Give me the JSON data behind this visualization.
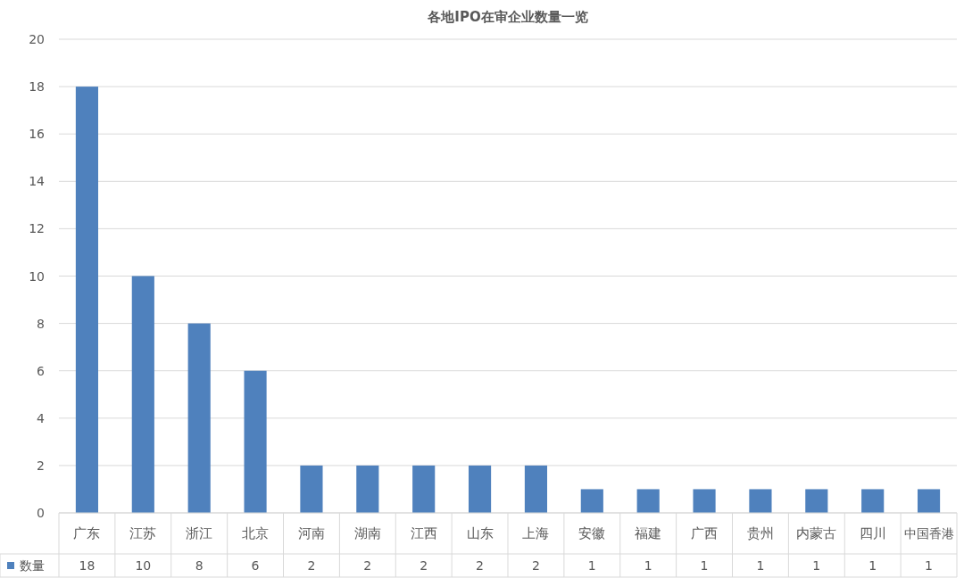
{
  "chart_data": {
    "type": "bar",
    "title": "各地IPO在审企业数量一览",
    "categories": [
      "广东",
      "江苏",
      "浙江",
      "北京",
      "河南",
      "湖南",
      "江西",
      "山东",
      "上海",
      "安徽",
      "福建",
      "广西",
      "贵州",
      "内蒙古",
      "四川",
      "中国香港"
    ],
    "series": [
      {
        "name": "数量",
        "color": "#4f81bd",
        "values": [
          18,
          10,
          8,
          6,
          2,
          2,
          2,
          2,
          2,
          1,
          1,
          1,
          1,
          1,
          1,
          1
        ]
      }
    ],
    "ylim": [
      0,
      20
    ],
    "yticks": [
      0,
      2,
      4,
      6,
      8,
      10,
      12,
      14,
      16,
      18,
      20
    ],
    "grid": "y",
    "data_labels": true
  }
}
